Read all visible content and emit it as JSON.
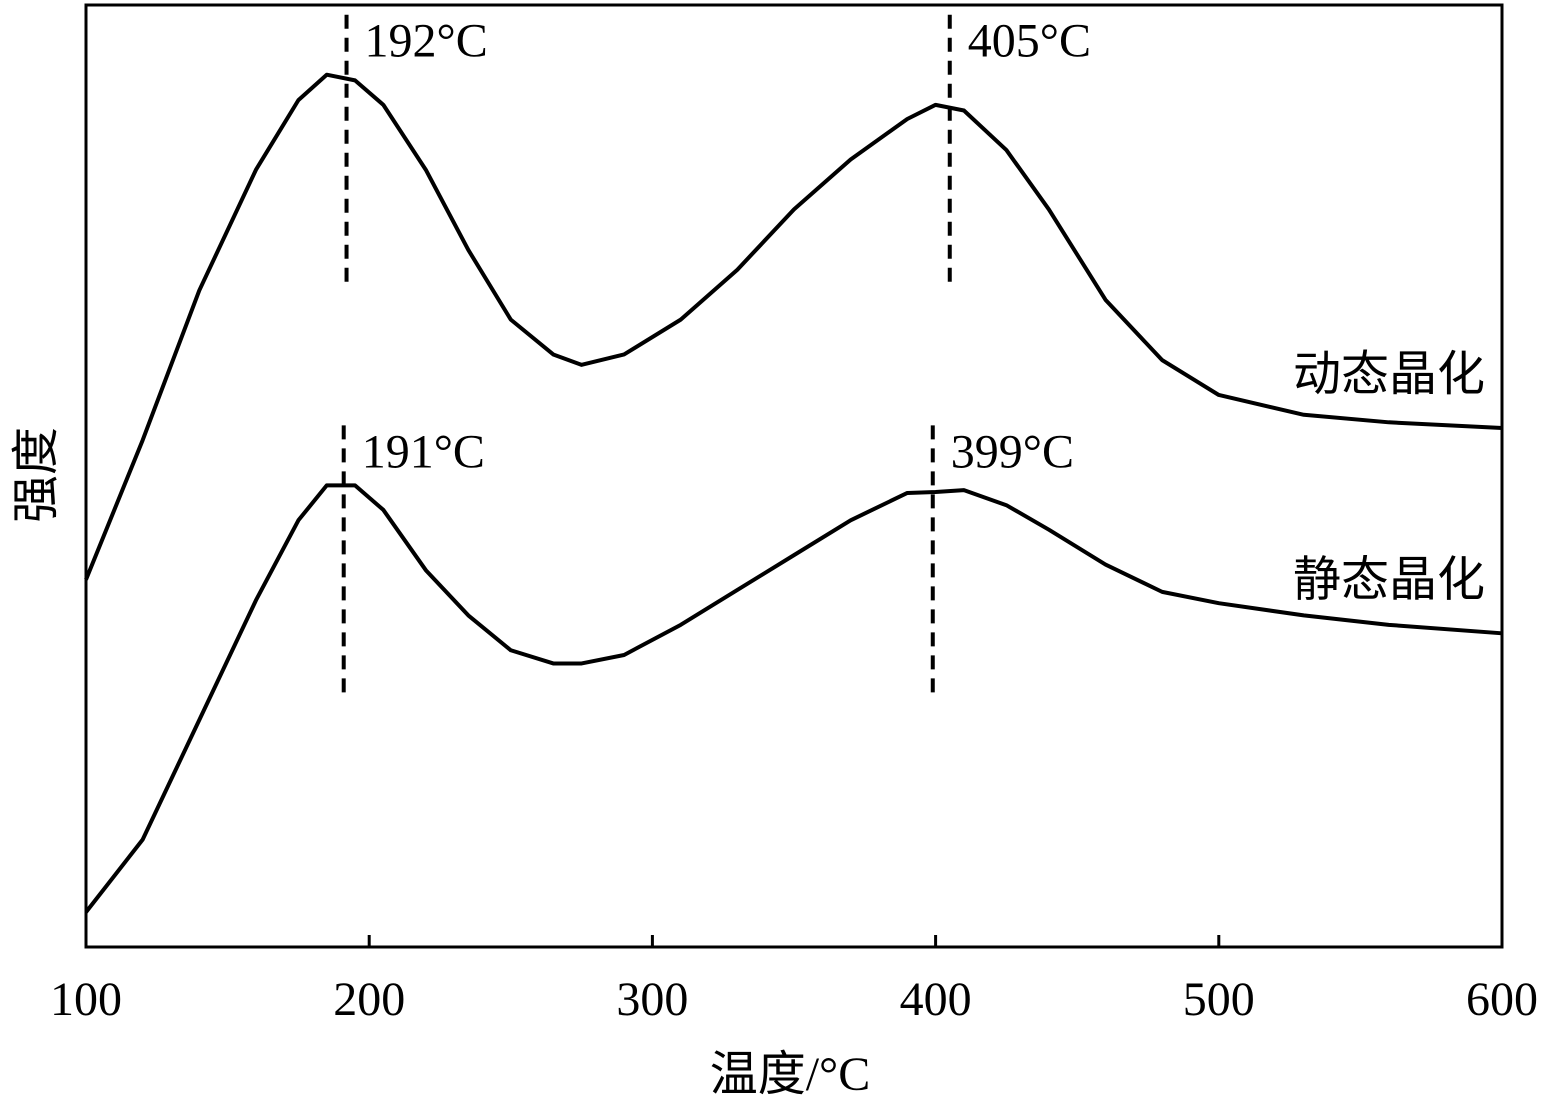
{
  "chart_data": {
    "type": "line",
    "xlabel": "温度/°C",
    "ylabel": "强度",
    "xlim": [
      100,
      600
    ],
    "xticks": [
      100,
      200,
      300,
      400,
      500,
      600
    ],
    "ylim": [
      0,
      100
    ],
    "x": [
      100,
      120,
      140,
      160,
      175,
      185,
      195,
      205,
      220,
      235,
      250,
      265,
      275,
      290,
      310,
      330,
      350,
      370,
      390,
      400,
      410,
      425,
      440,
      460,
      480,
      500,
      530,
      560,
      600
    ],
    "series": [
      {
        "name": "动态晶化",
        "color": "#000000",
        "values": [
          39.0,
          53.8,
          69.7,
          82.5,
          89.9,
          92.6,
          92.0,
          89.4,
          82.5,
          74.0,
          66.6,
          62.9,
          61.8,
          62.9,
          66.6,
          71.9,
          78.3,
          83.6,
          87.9,
          89.4,
          88.8,
          84.6,
          78.3,
          68.7,
          62.3,
          58.6,
          56.5,
          55.7,
          55.1
        ]
      },
      {
        "name": "静态晶化",
        "color": "#000000",
        "values": [
          3.7,
          11.4,
          24.1,
          36.8,
          45.3,
          49.0,
          49.0,
          46.4,
          40.0,
          35.2,
          31.5,
          30.1,
          30.1,
          31.0,
          34.2,
          37.9,
          41.6,
          45.3,
          48.2,
          48.3,
          48.5,
          46.9,
          44.3,
          40.6,
          37.7,
          36.5,
          35.2,
          34.2,
          33.3
        ]
      }
    ],
    "annotations": [
      {
        "text": "192°C",
        "x": 192,
        "series": 0
      },
      {
        "text": "405°C",
        "x": 405,
        "series": 0
      },
      {
        "text": "191°C",
        "x": 191,
        "series": 1
      },
      {
        "text": "399°C",
        "x": 399,
        "series": 1
      }
    ]
  }
}
